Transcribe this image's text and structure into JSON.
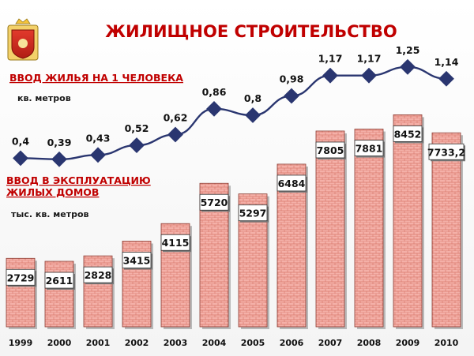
{
  "title": "ЖИЛИЩНОЕ СТРОИТЕЛЬСТВО",
  "per_capita": {
    "heading": "ВВОД ЖИЛЬЯ НА 1 ЧЕЛОВЕКА",
    "unit": "кв. метров"
  },
  "commissioning": {
    "heading_line1": "ВВОД В ЭКСПЛУАТАЦИЮ",
    "heading_line2": "ЖИЛЫХ ДОМОВ",
    "unit": "тыс. кв. метров"
  },
  "emblem": "coat-of-arms",
  "colors": {
    "title": "#c00000",
    "bar_fill": "#f2a7a0",
    "bar_brick": "#e07d72",
    "line": "#2a3670",
    "marker": "#2a3670"
  },
  "chart_data": [
    {
      "type": "bar",
      "categories": [
        "1999",
        "2000",
        "2001",
        "2002",
        "2003",
        "2004",
        "2005",
        "2006",
        "2007",
        "2008",
        "2009",
        "2010"
      ],
      "values": [
        2729,
        2611,
        2828,
        3415,
        4115,
        5720,
        5297,
        6484,
        7805,
        7881,
        8452,
        7733.2
      ],
      "value_labels": [
        "2729",
        "2611",
        "2828",
        "3415",
        "4115",
        "5720",
        "5297",
        "6484",
        "7805",
        "7881",
        "8452",
        "7733,2"
      ],
      "ylim": [
        0,
        9000
      ]
    },
    {
      "type": "line",
      "categories": [
        "1999",
        "2000",
        "2001",
        "2002",
        "2003",
        "2004",
        "2005",
        "2006",
        "2007",
        "2008",
        "2009",
        "2010"
      ],
      "values": [
        0.4,
        0.39,
        0.43,
        0.52,
        0.62,
        0.86,
        0.8,
        0.98,
        1.17,
        1.17,
        1.25,
        1.14
      ],
      "value_labels": [
        "0,4",
        "0,39",
        "0,43",
        "0,52",
        "0,62",
        "0,86",
        "0,8",
        "0,98",
        "1,17",
        "1,17",
        "1,25",
        "1,14"
      ],
      "ylim": [
        0.3,
        1.3
      ]
    }
  ]
}
